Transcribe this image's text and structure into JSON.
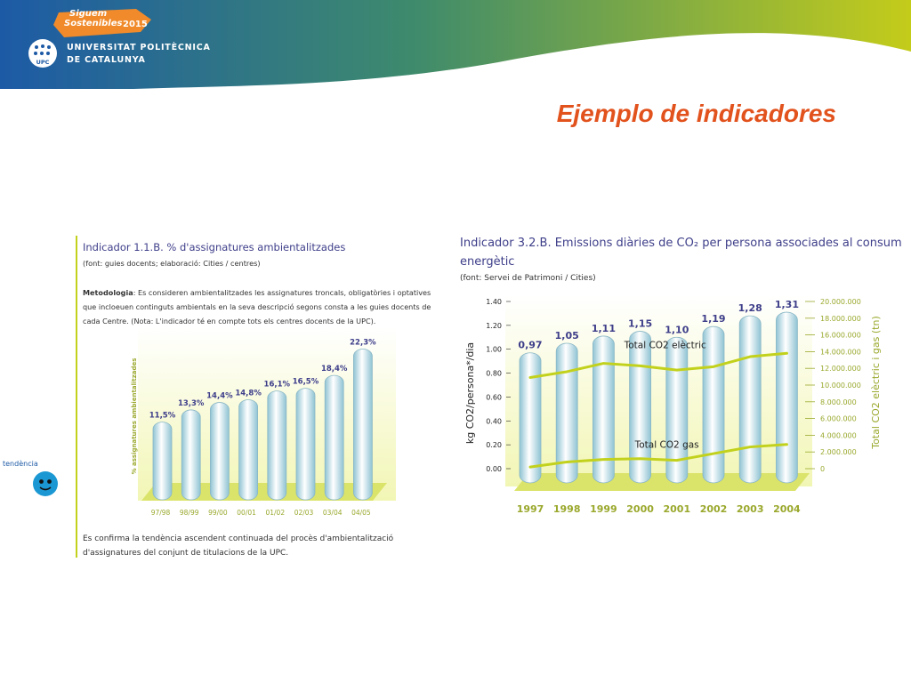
{
  "header": {
    "badge_line1": "Siguem",
    "badge_line2": "Sostenibles",
    "badge_year": "2015",
    "university_line1": "UNIVERSITAT POLITÈCNICA",
    "university_line2": "DE CATALUNYA",
    "logo_text": "UPC",
    "colors": {
      "banner_left": "#1d5aa6",
      "banner_mid": "#3d8a6d",
      "banner_right": "#c4cc1a",
      "badge": "#f08a2a"
    }
  },
  "slide_title": "Ejemplo de indicadores",
  "trend": {
    "label": "tendència",
    "icon": "smiley-icon"
  },
  "panel1": {
    "title": "Indicador 1.1.B. % d'assignatures ambientalitzades",
    "source": "(font: guies docents; elaboració: Cities / centres)",
    "method_label": "Metodologia",
    "method_text": ": Es consideren ambientalitzades les assignatures troncals, obligatòries i optatives que incloeuen continguts ambientals en la seva descripció segons consta a les guies docents de cada Centre. (Nota: L'indicador té en compte tots els centres docents de la UPC).",
    "conclusion": "Es confirma la tendència ascendent continuada del procès d'ambientalització d'assignatures del conjunt de titulacions de la UPC."
  },
  "panel2": {
    "title": "Indicador 3.2.B. Emissions diàries de CO₂ per persona associades al consum energètic",
    "source": "(font: Servei de Patrimoni / Cities)"
  },
  "chart_data": [
    {
      "type": "bar",
      "ylabel": "% assignatures ambientalitzades",
      "categories": [
        "97/98",
        "98/99",
        "99/00",
        "00/01",
        "01/02",
        "02/03",
        "03/04",
        "04/05"
      ],
      "values": [
        11.5,
        13.3,
        14.4,
        14.8,
        16.1,
        16.5,
        18.4,
        22.3
      ],
      "value_labels": [
        "11,5%",
        "13,3%",
        "14,4%",
        "14,8%",
        "16,1%",
        "16,5%",
        "18,4%",
        "22,3%"
      ],
      "ylim": [
        0,
        25
      ],
      "colors": {
        "bar": "#c3e1ea",
        "label": "#3e3e8a",
        "axis_text": "#9aa82c",
        "floor": "#dbe46a"
      }
    },
    {
      "type": "bar",
      "ylabel": "kg CO2/persona*/dia",
      "y2label": "Total CO2 elèctric i gas (tn)",
      "categories": [
        "1997",
        "1998",
        "1999",
        "2000",
        "2001",
        "2002",
        "2003",
        "2004"
      ],
      "values": [
        0.97,
        1.05,
        1.11,
        1.15,
        1.1,
        1.19,
        1.28,
        1.31
      ],
      "value_labels": [
        "0,97",
        "1,05",
        "1,11",
        "1,15",
        "1,10",
        "1,19",
        "1,28",
        "1,31"
      ],
      "ylim": [
        0,
        1.4
      ],
      "yticks": [
        "0.00",
        "0.20",
        "0.40",
        "0.60",
        "0.80",
        "1.00",
        "1.20",
        "1.40"
      ],
      "y2lim": [
        0,
        20000000
      ],
      "y2ticks": [
        "0",
        "2.000.000",
        "4.000.000",
        "6.000.000",
        "8.000.000",
        "10.000.000",
        "12.000.000",
        "14.000.000",
        "16.000.000",
        "18.000.000",
        "20.000.000"
      ],
      "series": [
        {
          "name": "Total CO2 elèctric",
          "axis": "right",
          "values": [
            10900000,
            11600000,
            12600000,
            12300000,
            11800000,
            12200000,
            13400000,
            13800000
          ]
        },
        {
          "name": "Total CO2 gas",
          "axis": "right",
          "values": [
            200000,
            800000,
            1100000,
            1200000,
            1000000,
            1800000,
            2600000,
            2900000
          ]
        }
      ],
      "colors": {
        "bar": "#c3e1ea",
        "line": "#c2d11c",
        "label": "#3e3e8a",
        "axis_text": "#9aa82c",
        "floor": "#dbe46a"
      }
    }
  ]
}
